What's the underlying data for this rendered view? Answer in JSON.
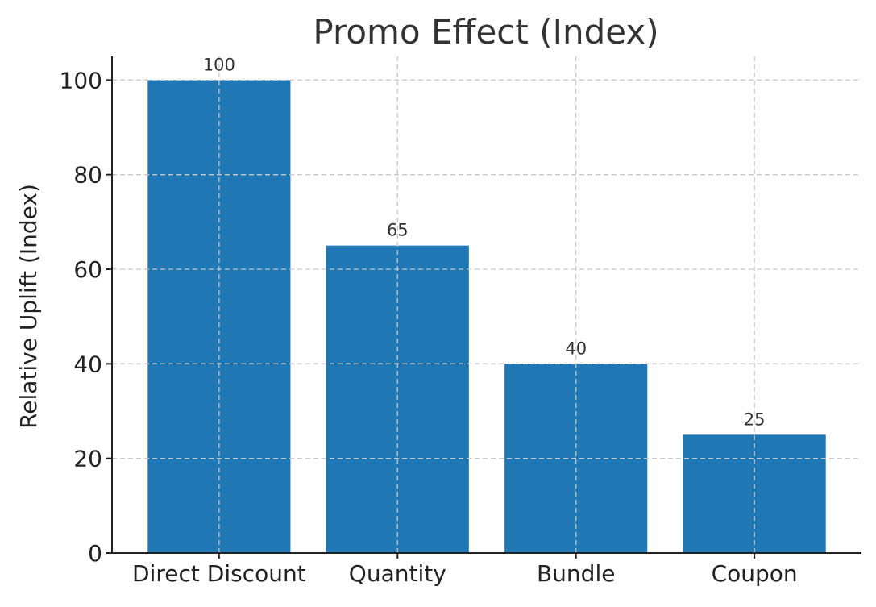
{
  "chart_data": {
    "type": "bar",
    "title": "Promo Effect (Index)",
    "xlabel": "",
    "ylabel": "Relative Uplift (Index)",
    "categories": [
      "Direct Discount",
      "Quantity",
      "Bundle",
      "Coupon"
    ],
    "values": [
      100,
      65,
      40,
      25
    ],
    "data_labels": [
      "100",
      "65",
      "40",
      "25"
    ],
    "ylim": [
      0,
      105
    ],
    "yticks": [
      0,
      20,
      40,
      60,
      80,
      100
    ],
    "grid": true,
    "bar_color": "#1f77b4",
    "legend": "none"
  }
}
